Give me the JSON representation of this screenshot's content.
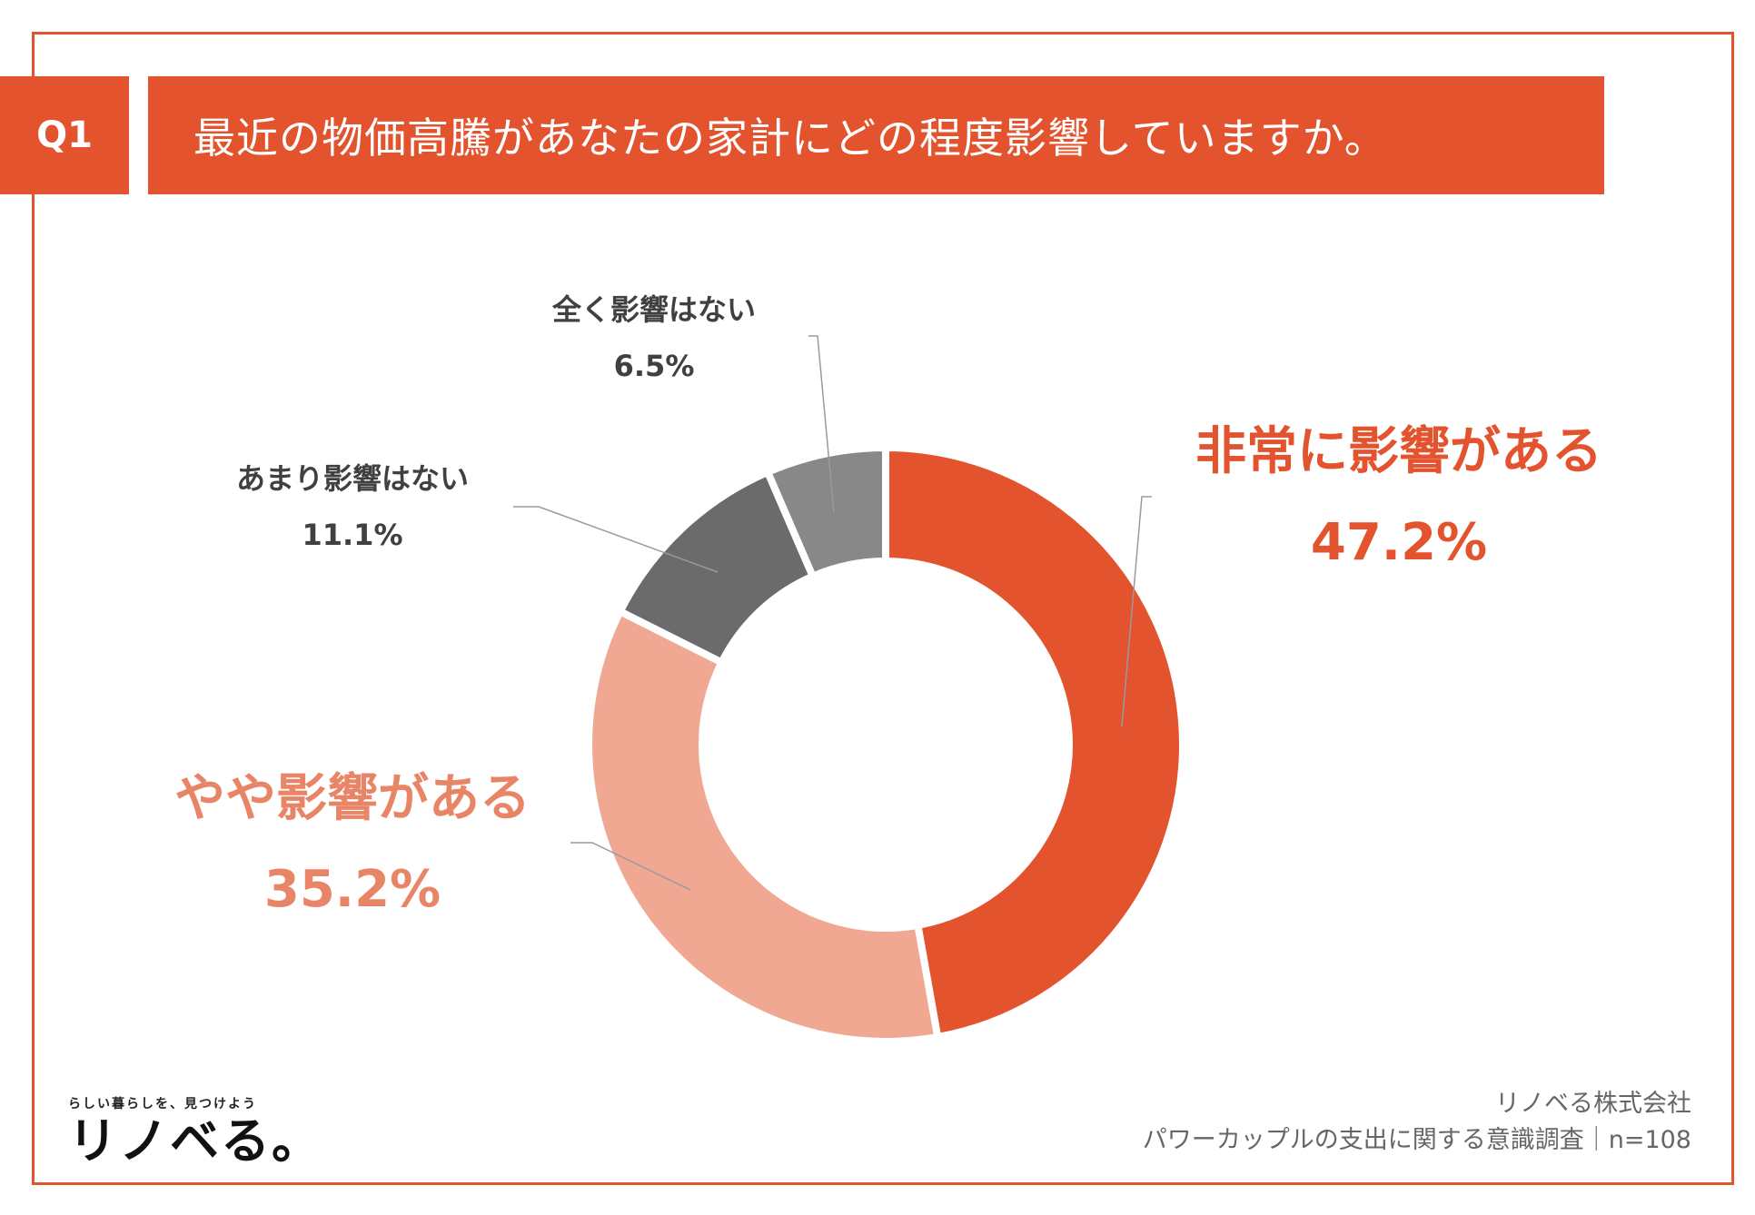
{
  "question": {
    "badge": "Q1",
    "text": "最近の物価高騰があなたの家計にどの程度影響していますか。"
  },
  "colors": {
    "accent": "#e2532e",
    "light": "#f0a893",
    "dark": "#6b6b6b",
    "mid": "#888888"
  },
  "chart_data": {
    "type": "pie",
    "donut": true,
    "start": "12 o'clock, clockwise",
    "slices": [
      {
        "name": "非常に影響がある",
        "value": 47.2,
        "label": "47.2%",
        "color": "#e2532e"
      },
      {
        "name": "やや影響がある",
        "value": 35.2,
        "label": "35.2%",
        "color": "#f0a893"
      },
      {
        "name": "あまり影響はない",
        "value": 11.1,
        "label": "11.1%",
        "color": "#6b6b6b"
      },
      {
        "name": "全く影響はない",
        "value": 6.5,
        "label": "6.5%",
        "color": "#888888"
      }
    ]
  },
  "logo": {
    "tagline": "らしい暮らしを、見つけよう",
    "name": "リノベる。"
  },
  "footer": {
    "company": "リノベる株式会社",
    "survey": "パワーカップルの支出に関する意識調査｜n=108"
  }
}
